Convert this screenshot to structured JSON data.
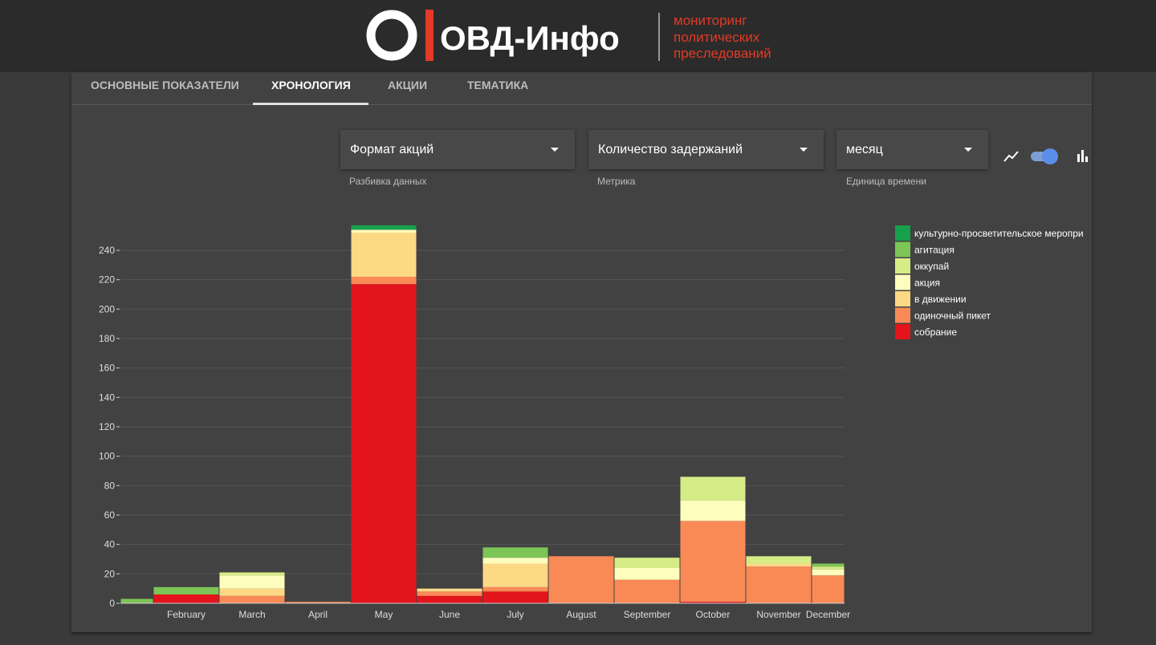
{
  "header": {
    "logo_text": "ОВД-Инфо",
    "tagline": [
      "мониторинг",
      "политических",
      "преследований"
    ]
  },
  "tabs": [
    "ОСНОВНЫЕ ПОКАЗАТЕЛИ",
    "ХРОНОЛОГИЯ",
    "АКЦИИ",
    "ТЕМАТИКА"
  ],
  "controls": [
    {
      "value": "Формат акций",
      "caption": "Разбивка данных"
    },
    {
      "value": "Количество задержаний",
      "caption": "Метрика"
    },
    {
      "value": "месяц",
      "caption": "Единица времени"
    }
  ],
  "chart_data": {
    "type": "stacked-bar",
    "categories": [
      null,
      "February",
      "March",
      "April",
      "May",
      "June",
      "July",
      "August",
      "September",
      "October",
      "November",
      "December"
    ],
    "series": [
      {
        "name": "собрание",
        "color": "#e3141c",
        "values": [
          0,
          6,
          0,
          0,
          217,
          5,
          8,
          0,
          0,
          1,
          0,
          0
        ]
      },
      {
        "name": "одиночный пикет",
        "color": "#f98a56",
        "values": [
          0,
          0,
          5,
          1,
          5,
          3,
          3,
          32,
          16,
          55,
          25,
          19
        ]
      },
      {
        "name": "в движении",
        "color": "#fdd986",
        "values": [
          0,
          0,
          5,
          0,
          30,
          2,
          16,
          0,
          0,
          0,
          2,
          0
        ]
      },
      {
        "name": "акция",
        "color": "#fdfdbd",
        "values": [
          0,
          0,
          9,
          0,
          2,
          0,
          4,
          0,
          8,
          14,
          0,
          4
        ]
      },
      {
        "name": "оккупай",
        "color": "#d6ec86",
        "values": [
          0,
          0,
          2,
          0,
          0,
          0,
          0,
          0,
          7,
          16,
          5,
          2
        ]
      },
      {
        "name": "агитация",
        "color": "#7cc556",
        "values": [
          3,
          5,
          0,
          0,
          0,
          0,
          7,
          0,
          0,
          0,
          0,
          2
        ]
      },
      {
        "name": "культурно-просветительское меропри",
        "color": "#17a04c",
        "values": [
          0,
          0,
          0,
          0,
          3,
          0,
          0,
          0,
          0,
          0,
          0,
          0
        ]
      }
    ],
    "ylim": [
      0,
      260
    ],
    "yticks": [
      0,
      20,
      40,
      60,
      80,
      100,
      120,
      140,
      160,
      180,
      200,
      220,
      240
    ],
    "grid": true
  }
}
